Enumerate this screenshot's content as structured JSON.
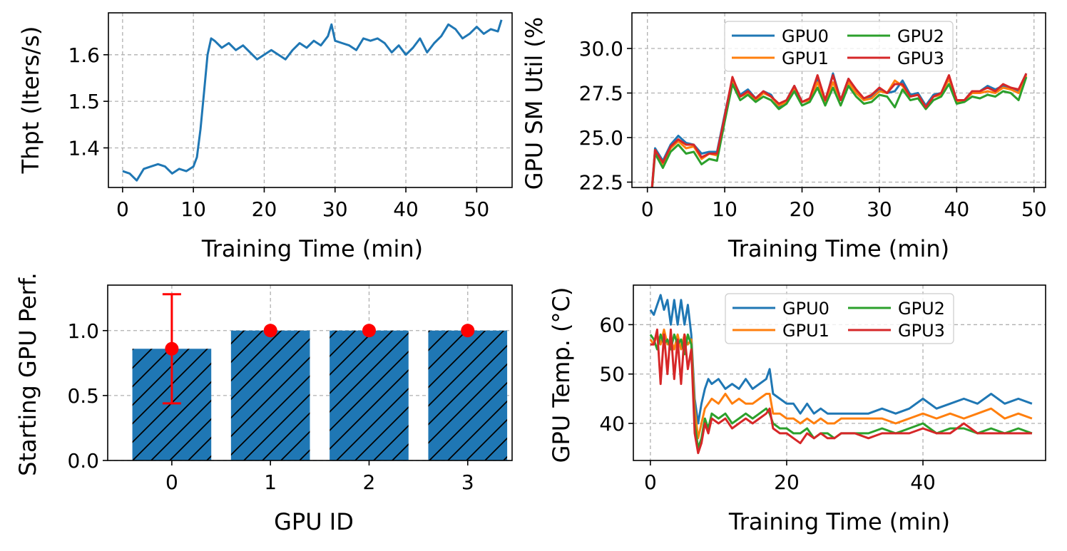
{
  "chart_data": [
    {
      "id": "thpt",
      "type": "line",
      "xlabel": "Training Time (min)",
      "ylabel": "Thpt (Iters/s)",
      "xlim": [
        -2,
        55
      ],
      "ylim": [
        1.315,
        1.69
      ],
      "xticks": [
        0,
        10,
        20,
        30,
        40,
        50
      ],
      "yticks": [
        1.4,
        1.5,
        1.6
      ],
      "ytick_labels": [
        "1.4",
        "1.5",
        "1.6"
      ],
      "grid": true,
      "colors": {
        "line": "#1f77b4"
      },
      "series": [
        {
          "x": [
            0,
            1,
            2,
            3,
            4,
            5,
            6,
            7,
            8,
            9,
            10,
            10.5,
            11,
            11.5,
            12,
            12.5,
            13,
            14,
            15,
            16,
            17,
            18,
            19,
            20,
            21,
            22,
            23,
            24,
            25,
            26,
            27,
            28,
            29,
            29.5,
            30,
            31,
            32,
            33,
            34,
            35,
            36,
            37,
            38,
            39,
            40,
            41,
            42,
            43,
            44,
            45,
            46,
            47,
            48,
            49,
            50,
            51,
            52,
            53,
            53.5
          ],
          "values": [
            1.35,
            1.345,
            1.33,
            1.355,
            1.36,
            1.365,
            1.36,
            1.345,
            1.355,
            1.35,
            1.36,
            1.38,
            1.44,
            1.52,
            1.6,
            1.635,
            1.63,
            1.615,
            1.625,
            1.61,
            1.62,
            1.605,
            1.59,
            1.6,
            1.61,
            1.6,
            1.59,
            1.61,
            1.625,
            1.615,
            1.63,
            1.62,
            1.64,
            1.665,
            1.63,
            1.625,
            1.62,
            1.61,
            1.635,
            1.63,
            1.635,
            1.625,
            1.605,
            1.62,
            1.6,
            1.615,
            1.635,
            1.605,
            1.625,
            1.64,
            1.665,
            1.655,
            1.635,
            1.645,
            1.66,
            1.645,
            1.655,
            1.65,
            1.675
          ]
        }
      ]
    },
    {
      "id": "sm_util",
      "type": "line",
      "xlabel": "Training Time (min)",
      "ylabel": "GPU SM Util (%",
      "xlim": [
        -2,
        51.5
      ],
      "ylim": [
        22.2,
        32
      ],
      "xticks": [
        0,
        10,
        20,
        30,
        40,
        50
      ],
      "yticks": [
        22.5,
        25.0,
        27.5,
        30.0
      ],
      "ytick_labels": [
        "22.5",
        "25.0",
        "27.5",
        "30.0"
      ],
      "grid": true,
      "legend": {
        "placement": "upper-center",
        "columns": 2
      },
      "series": [
        {
          "name": "GPU0",
          "color": "#1f77b4",
          "x": [
            0,
            1,
            2,
            3,
            4,
            5,
            6,
            7,
            8,
            9,
            10,
            11,
            12,
            13,
            14,
            15,
            16,
            17,
            18,
            19,
            20,
            21,
            22,
            23,
            24,
            25,
            26,
            27,
            28,
            29,
            30,
            31,
            32,
            33,
            34,
            35,
            36,
            37,
            38,
            39,
            40,
            41,
            42,
            43,
            44,
            45,
            46,
            47,
            48,
            49
          ],
          "values": [
            19,
            24.4,
            23.7,
            24.6,
            25.1,
            24.7,
            24.6,
            24.1,
            24.2,
            24.2,
            26.3,
            28.3,
            27.4,
            27.7,
            27.2,
            27.6,
            27.4,
            26.7,
            27.1,
            27.9,
            27.0,
            27.1,
            28.3,
            27.0,
            28.6,
            27.1,
            28.3,
            27.6,
            27.2,
            27.3,
            27.7,
            27.5,
            27.6,
            28.2,
            27.4,
            27.5,
            26.8,
            27.4,
            27.5,
            28.4,
            27.1,
            27.1,
            27.6,
            27.6,
            27.9,
            27.7,
            27.9,
            27.8,
            27.6,
            28.6
          ]
        },
        {
          "name": "GPU1",
          "color": "#ff7f0e",
          "x": [
            0,
            1,
            2,
            3,
            4,
            5,
            6,
            7,
            8,
            9,
            10,
            11,
            12,
            13,
            14,
            15,
            16,
            17,
            18,
            19,
            20,
            21,
            22,
            23,
            24,
            25,
            26,
            27,
            28,
            29,
            30,
            31,
            32,
            33,
            34,
            35,
            36,
            37,
            38,
            39,
            40,
            41,
            42,
            43,
            44,
            45,
            46,
            47,
            48,
            49
          ],
          "values": [
            19,
            24.3,
            23.5,
            24.4,
            24.8,
            24.4,
            24.5,
            23.8,
            24.1,
            24.0,
            26.1,
            28.1,
            27.3,
            27.5,
            27.1,
            27.5,
            27.3,
            26.8,
            27.0,
            27.8,
            27.0,
            27.1,
            28.1,
            27.0,
            28.1,
            27.1,
            28.1,
            27.5,
            27.1,
            27.2,
            27.6,
            27.5,
            28.2,
            27.9,
            27.3,
            27.4,
            26.7,
            27.3,
            27.4,
            28.3,
            27.0,
            27.1,
            27.5,
            27.5,
            27.6,
            27.5,
            27.8,
            27.7,
            27.5,
            28.5
          ]
        },
        {
          "name": "GPU2",
          "color": "#2ca02c",
          "x": [
            0,
            1,
            2,
            3,
            4,
            5,
            6,
            7,
            8,
            9,
            10,
            11,
            12,
            13,
            14,
            15,
            16,
            17,
            18,
            19,
            20,
            21,
            22,
            23,
            24,
            25,
            26,
            27,
            28,
            29,
            30,
            31,
            32,
            33,
            34,
            35,
            36,
            37,
            38,
            39,
            40,
            41,
            42,
            43,
            44,
            45,
            46,
            47,
            48,
            49
          ],
          "values": [
            19,
            24.1,
            23.3,
            24.2,
            24.6,
            24.1,
            24.2,
            23.5,
            23.8,
            23.7,
            25.9,
            28.0,
            27.1,
            27.4,
            27.0,
            27.3,
            27.1,
            26.6,
            26.9,
            27.6,
            26.8,
            27.0,
            27.8,
            26.8,
            27.8,
            26.8,
            27.9,
            27.3,
            26.9,
            27.0,
            27.4,
            27.3,
            26.7,
            27.7,
            27.1,
            27.2,
            26.6,
            27.1,
            27.3,
            28.0,
            26.9,
            27.0,
            27.3,
            27.2,
            27.4,
            27.3,
            27.6,
            27.5,
            27.1,
            28.4
          ]
        },
        {
          "name": "GPU3",
          "color": "#d62728",
          "x": [
            0,
            1,
            2,
            3,
            4,
            5,
            6,
            7,
            8,
            9,
            10,
            11,
            12,
            13,
            14,
            15,
            16,
            17,
            18,
            19,
            20,
            21,
            22,
            23,
            24,
            25,
            26,
            27,
            28,
            29,
            30,
            31,
            32,
            33,
            34,
            35,
            36,
            37,
            38,
            39,
            40,
            41,
            42,
            43,
            44,
            45,
            46,
            47,
            48,
            49
          ],
          "values": [
            19,
            24.3,
            23.6,
            24.5,
            24.9,
            24.6,
            24.6,
            23.9,
            24.1,
            24.1,
            26.2,
            28.4,
            27.3,
            27.6,
            27.2,
            27.6,
            27.3,
            26.9,
            27.1,
            27.9,
            27.0,
            27.2,
            28.5,
            27.1,
            28.5,
            27.1,
            28.3,
            27.7,
            27.2,
            27.4,
            27.8,
            27.5,
            28.0,
            28.0,
            27.3,
            27.4,
            26.7,
            27.3,
            27.5,
            28.5,
            27.1,
            27.1,
            27.6,
            27.6,
            27.8,
            27.6,
            28.0,
            27.8,
            27.7,
            28.6
          ]
        }
      ]
    },
    {
      "id": "start_perf",
      "type": "bar",
      "xlabel": "GPU ID",
      "ylabel": "Starting GPU Perf.",
      "categories": [
        "0",
        "1",
        "2",
        "3"
      ],
      "values": [
        0.86,
        1.0,
        1.0,
        1.0
      ],
      "errors": [
        0.42,
        0,
        0,
        0
      ],
      "xlim": [
        -0.65,
        3.45
      ],
      "ylim": [
        0,
        1.35
      ],
      "yticks": [
        0,
        0.5,
        1.0
      ],
      "ytick_labels": [
        "0.0",
        "0.5",
        "1.0"
      ],
      "grid": true,
      "hatch": "diagonal",
      "colors": {
        "bar": "#1f77b4",
        "marker": "#ff0000"
      }
    },
    {
      "id": "gpu_temp",
      "type": "line",
      "xlabel": "Training Time (min)",
      "ylabel": "GPU Temp. (°C)",
      "xlim": [
        -2.5,
        58
      ],
      "ylim": [
        32.5,
        68
      ],
      "xticks": [
        0,
        20,
        40
      ],
      "yticks": [
        40,
        50,
        60
      ],
      "ytick_labels": [
        "40",
        "50",
        "60"
      ],
      "grid": true,
      "legend": {
        "placement": "upper-center",
        "columns": 2
      },
      "series": [
        {
          "name": "GPU0",
          "color": "#1f77b4",
          "x": [
            0,
            0.5,
            1,
            1.5,
            2,
            2.5,
            3,
            3.5,
            4,
            4.5,
            5,
            5.5,
            6,
            6.5,
            7,
            7.5,
            8,
            8.5,
            9,
            10,
            11,
            12,
            13,
            14,
            15,
            16,
            17,
            17.5,
            18,
            19,
            20,
            21,
            22,
            23,
            24,
            25,
            26,
            27,
            28,
            30,
            32,
            34,
            36,
            38,
            40,
            42,
            44,
            46,
            48,
            50,
            52,
            54,
            56
          ],
          "values": [
            63,
            62,
            64,
            66,
            63,
            65,
            60,
            65,
            60,
            65,
            60,
            64,
            58,
            45,
            40,
            44,
            47,
            49,
            48,
            49,
            47,
            48,
            47,
            49,
            47,
            48,
            49,
            51,
            46,
            45,
            44,
            44,
            42,
            44,
            42,
            43,
            42,
            42,
            42,
            42,
            42,
            43,
            42,
            43,
            45,
            43,
            44,
            45,
            44,
            46,
            44,
            45,
            44
          ]
        },
        {
          "name": "GPU1",
          "color": "#ff7f0e",
          "x": [
            0,
            0.5,
            1,
            1.5,
            2,
            2.5,
            3,
            3.5,
            4,
            4.5,
            5,
            5.5,
            6,
            6.5,
            7,
            7.5,
            8,
            8.5,
            9,
            10,
            11,
            12,
            13,
            14,
            15,
            16,
            17,
            17.5,
            18,
            19,
            20,
            21,
            22,
            23,
            24,
            25,
            26,
            27,
            28,
            30,
            32,
            34,
            36,
            38,
            40,
            42,
            44,
            46,
            48,
            50,
            52,
            54,
            56
          ],
          "values": [
            57,
            56,
            58,
            56,
            59,
            56,
            57,
            55,
            58,
            55,
            58,
            56,
            57,
            43,
            37,
            40,
            43,
            44,
            45,
            44,
            46,
            44,
            45,
            44,
            44,
            45,
            46,
            46,
            42,
            42,
            41,
            41,
            40,
            41,
            40,
            41,
            40,
            40,
            41,
            41,
            41,
            41,
            40,
            41,
            42,
            41,
            42,
            41,
            42,
            43,
            41,
            42,
            41
          ]
        },
        {
          "name": "GPU2",
          "color": "#2ca02c",
          "x": [
            0,
            0.5,
            1,
            1.5,
            2,
            2.5,
            3,
            3.5,
            4,
            4.5,
            5,
            5.5,
            6,
            6.5,
            7,
            7.5,
            8,
            8.5,
            9,
            10,
            11,
            12,
            13,
            14,
            15,
            16,
            17,
            17.5,
            18,
            19,
            20,
            21,
            22,
            23,
            24,
            25,
            26,
            27,
            28,
            30,
            32,
            34,
            36,
            38,
            40,
            42,
            44,
            46,
            48,
            50,
            52,
            54,
            56
          ],
          "values": [
            58,
            57,
            55,
            58,
            56,
            57,
            55,
            58,
            56,
            57,
            54,
            58,
            56,
            40,
            35,
            37,
            41,
            39,
            42,
            41,
            42,
            40,
            41,
            42,
            41,
            42,
            43,
            42,
            40,
            39,
            39,
            38,
            38,
            39,
            37,
            38,
            38,
            37,
            38,
            38,
            38,
            39,
            38,
            39,
            40,
            38,
            39,
            39,
            38,
            39,
            38,
            39,
            38
          ]
        },
        {
          "name": "GPU3",
          "color": "#d62728",
          "x": [
            0,
            0.5,
            1,
            1.5,
            2,
            2.5,
            3,
            3.5,
            4,
            4.5,
            5,
            5.5,
            6,
            6.5,
            7,
            7.5,
            8,
            8.5,
            9,
            10,
            11,
            12,
            13,
            14,
            15,
            16,
            17,
            17.5,
            18,
            19,
            20,
            21,
            22,
            23,
            24,
            25,
            26,
            27,
            28,
            30,
            32,
            34,
            36,
            38,
            40,
            42,
            44,
            46,
            48,
            50,
            52,
            54,
            56
          ],
          "values": [
            56,
            56,
            59,
            48,
            58,
            50,
            59,
            49,
            57,
            48,
            58,
            51,
            55,
            38,
            34,
            36,
            40,
            38,
            41,
            40,
            41,
            39,
            40,
            41,
            40,
            41,
            42,
            43,
            39,
            38,
            38,
            37,
            36,
            38,
            37,
            38,
            37,
            37,
            38,
            38,
            37,
            38,
            38,
            38,
            39,
            38,
            38,
            40,
            38,
            38,
            38,
            38,
            38
          ]
        }
      ]
    }
  ]
}
